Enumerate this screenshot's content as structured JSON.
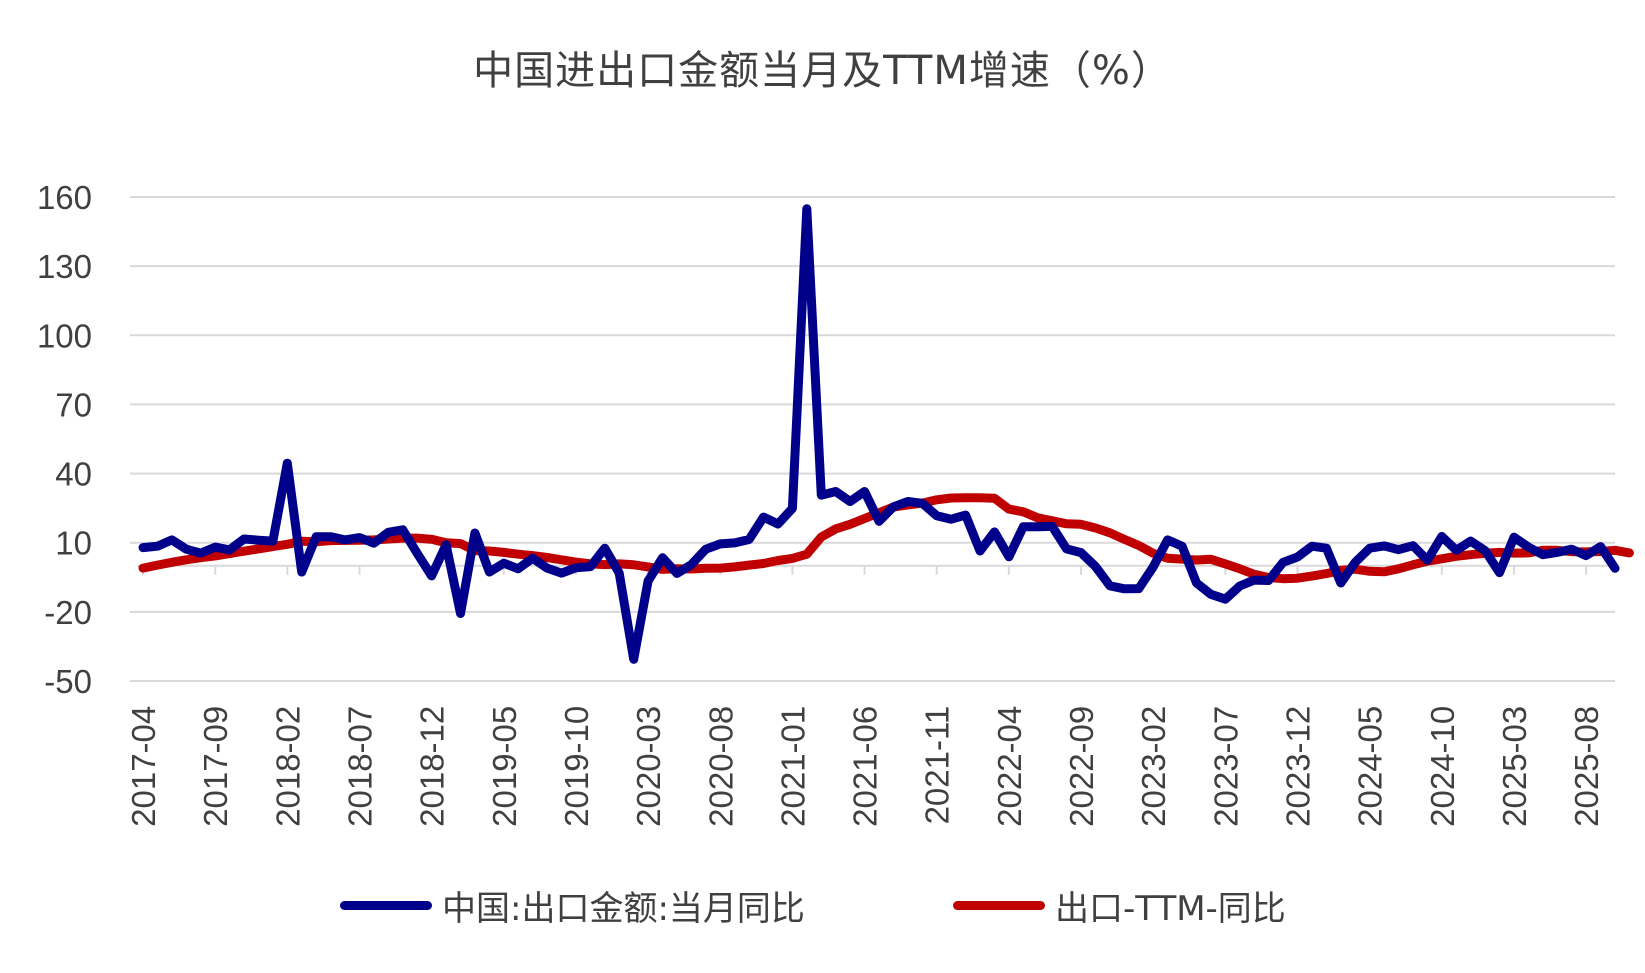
{
  "chart_data": {
    "type": "line",
    "title": "中国进出口金额当月及TTM增速（%）",
    "ylim": [
      -50,
      160
    ],
    "yticks": [
      -50,
      -20,
      10,
      40,
      70,
      100,
      130,
      160
    ],
    "grid": true,
    "legend_position": "bottom",
    "start_month": "2017-04",
    "x_tick_labels": [
      "2017-04",
      "2017-09",
      "2018-02",
      "2018-07",
      "2018-12",
      "2019-05",
      "2019-10",
      "2020-03",
      "2020-08",
      "2021-01",
      "2021-06",
      "2021-11",
      "2022-04",
      "2022-09",
      "2023-02",
      "2023-07",
      "2023-12",
      "2024-05",
      "2024-10",
      "2025-03",
      "2025-08"
    ],
    "series": [
      {
        "name": "中国:出口金额:当月同比",
        "color": "#00008B",
        "values": [
          7.9,
          8.5,
          11.2,
          7.2,
          5.5,
          8.1,
          6.9,
          11.6,
          11.1,
          10.7,
          44.5,
          -2.7,
          12.6,
          12.6,
          11.2,
          12.2,
          9.8,
          14.5,
          15.6,
          5.4,
          -4.4,
          9.1,
          -20.7,
          14.2,
          -2.7,
          1.1,
          -1.3,
          3.3,
          -1.0,
          -3.2,
          -0.9,
          -0.4,
          7.6,
          -3.2,
          -40.6,
          -6.6,
          3.5,
          -3.3,
          0.5,
          7.2,
          9.5,
          9.9,
          11.4,
          21.1,
          18.1,
          24.9,
          154.9,
          30.6,
          32.2,
          27.9,
          32.2,
          19.3,
          25.6,
          27.9,
          27.1,
          21.7,
          20.2,
          22.0,
          6.4,
          14.7,
          3.9,
          16.9,
          16.9,
          17.1,
          7.3,
          5.7,
          -0.3,
          -8.7,
          -10.0,
          -9.9,
          -0.5,
          11.2,
          8.5,
          -7.5,
          -12.4,
          -14.5,
          -8.8,
          -6.2,
          -6.4,
          1.5,
          3.8,
          8.5,
          7.6,
          -7.5,
          1.5,
          7.6,
          8.6,
          7.0,
          8.7,
          2.4,
          12.7,
          6.7,
          10.7,
          6.6,
          -3.0,
          12.4,
          8.1,
          4.8,
          5.8,
          7.2,
          4.4,
          8.3,
          -1.1
        ],
        "style": "solid"
      },
      {
        "name": "出口-TTM-同比",
        "color": "#C00000",
        "values": [
          -1.0,
          0.3,
          1.5,
          2.6,
          3.5,
          4.3,
          5.3,
          6.3,
          7.3,
          8.3,
          9.3,
          10.6,
          10.4,
          10.9,
          11.0,
          11.1,
          11.2,
          11.6,
          12.0,
          12.0,
          11.5,
          10.0,
          9.6,
          6.6,
          6.4,
          5.8,
          5.0,
          4.4,
          3.6,
          2.6,
          1.6,
          0.8,
          0.5,
          0.8,
          0.4,
          -0.5,
          -1.6,
          -1.3,
          -1.4,
          -1.1,
          -1.0,
          -0.5,
          0.3,
          1.0,
          2.3,
          3.2,
          5.0,
          12.5,
          16.0,
          18.0,
          20.5,
          23.0,
          25.5,
          26.4,
          27.2,
          28.6,
          29.4,
          29.5,
          29.5,
          29.3,
          24.6,
          23.4,
          20.8,
          19.5,
          18.2,
          18.0,
          16.4,
          14.3,
          11.5,
          8.8,
          5.4,
          3.3,
          2.9,
          2.5,
          2.8,
          0.8,
          -1.3,
          -3.7,
          -5.1,
          -5.6,
          -5.4,
          -4.5,
          -3.4,
          -2.0,
          -1.5,
          -2.4,
          -2.6,
          -1.3,
          0.4,
          2.0,
          3.0,
          4.1,
          4.8,
          5.4,
          5.8,
          5.5,
          5.6,
          6.7,
          6.7,
          6.1,
          6.0,
          6.2,
          6.7,
          5.6
        ],
        "style": "solid"
      }
    ]
  }
}
